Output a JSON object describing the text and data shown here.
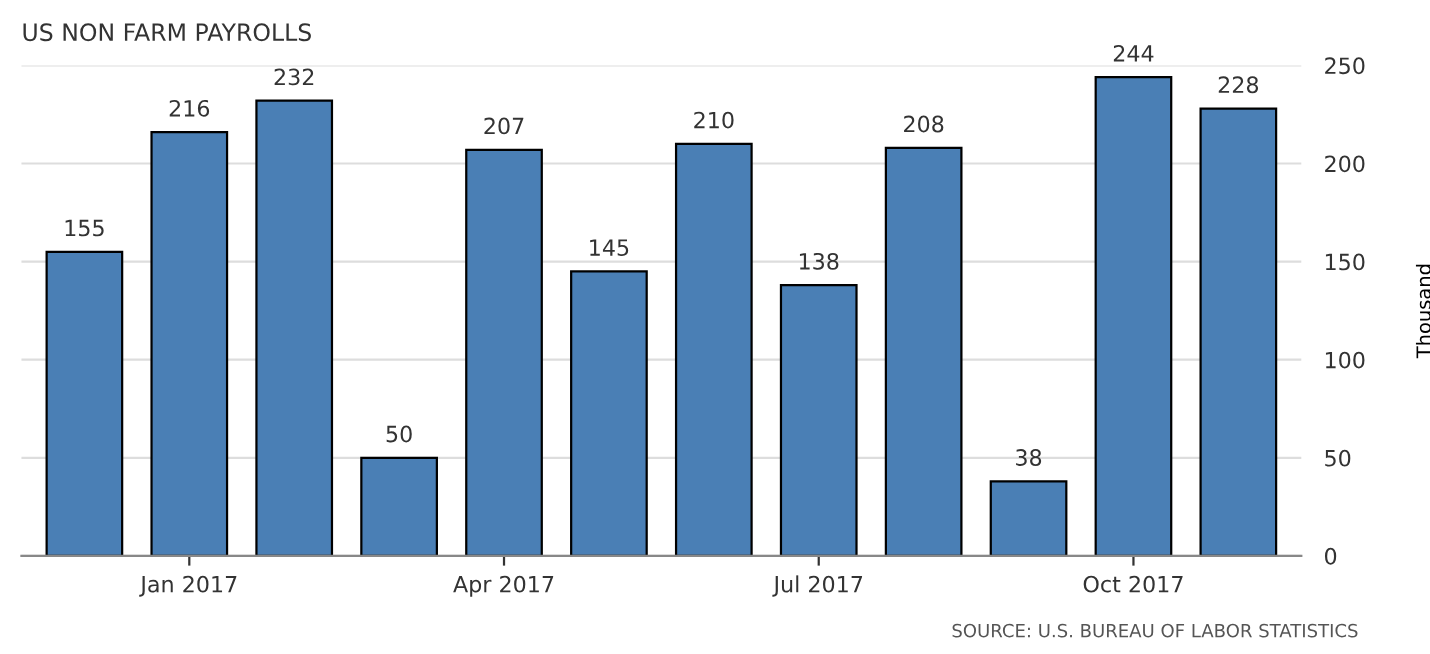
{
  "chart_data": {
    "type": "bar",
    "title": "US NON FARM PAYROLLS",
    "ylabel": "Thousand",
    "categories": [
      null,
      "Jan 2017",
      null,
      null,
      "Apr 2017",
      null,
      null,
      "Jul 2017",
      null,
      null,
      "Oct 2017",
      null
    ],
    "values": [
      155,
      216,
      232,
      50,
      207,
      145,
      210,
      138,
      208,
      38,
      244,
      228
    ],
    "color": "#4a7fb5",
    "ylim": [
      0,
      250
    ],
    "yticks": [
      0,
      50,
      100,
      150,
      200,
      250
    ],
    "grid": "y",
    "data_labels": true,
    "annotations": [
      "SOURCE: U.S. BUREAU OF LABOR STATISTICS"
    ]
  }
}
